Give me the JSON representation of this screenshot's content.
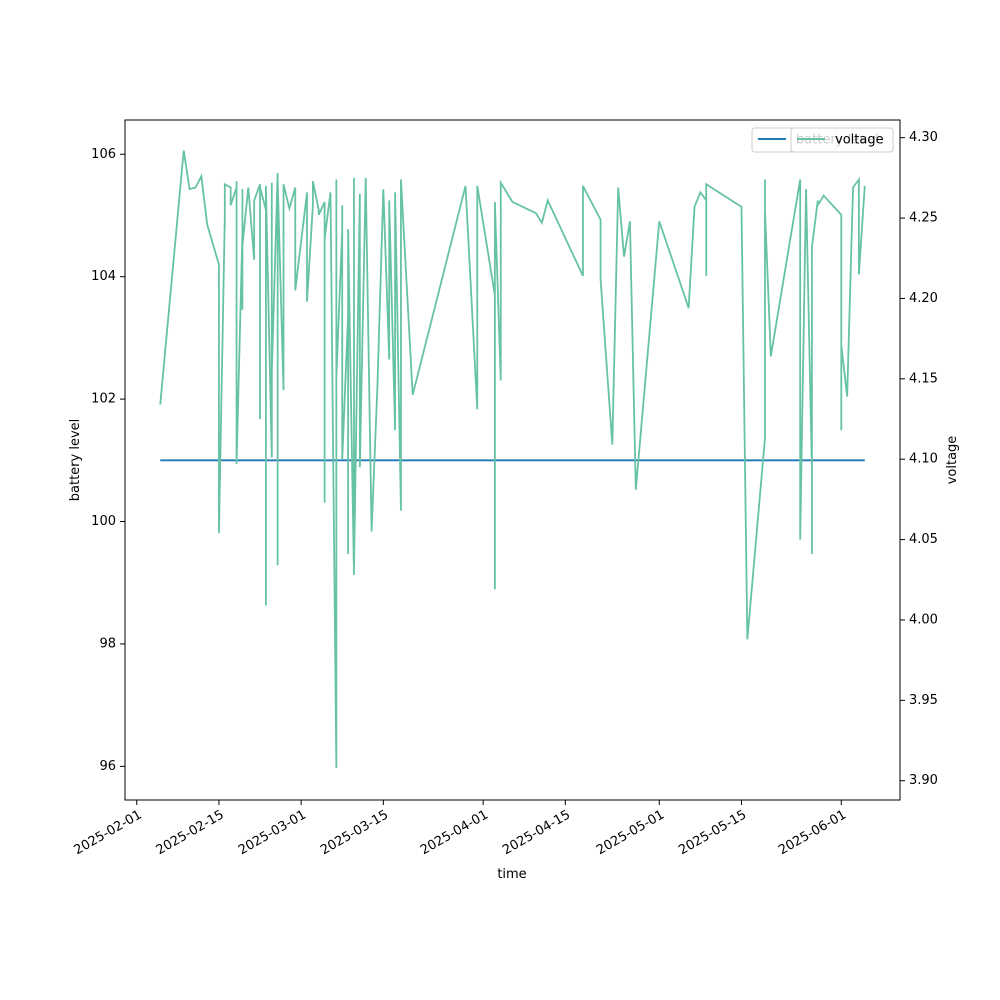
{
  "chart_data": {
    "type": "line",
    "xlabel": "time",
    "ylabel": "battery level",
    "y2label": "voltage",
    "xlim": [
      "2025-01-30",
      "2025-06-11"
    ],
    "xticks": [
      "2025-02-01",
      "2025-02-15",
      "2025-03-01",
      "2025-03-15",
      "2025-04-01",
      "2025-04-15",
      "2025-05-01",
      "2025-05-15",
      "2025-06-01"
    ],
    "ylim": [
      95.45,
      106.56
    ],
    "yticks": [
      96,
      98,
      100,
      102,
      104,
      106
    ],
    "y2lim": [
      3.888,
      4.311
    ],
    "y2ticks": [
      {
        "value": 3.9,
        "label": "3.90"
      },
      3.95,
      {
        "value": 4,
        "label": "4.00"
      },
      4.05,
      {
        "value": 4.1,
        "label": "4.10"
      },
      4.15,
      {
        "value": 4.2,
        "label": "4.20"
      },
      4.25,
      {
        "value": 4.3,
        "label": "4.30"
      }
    ],
    "legend": "upper right",
    "series": [
      {
        "name": "battery level",
        "color": "#1f77b4",
        "axis": "y",
        "x": [
          "2025-02-05",
          "2025-06-05"
        ],
        "values": [
          101,
          101
        ]
      },
      {
        "name": "voltage",
        "color": "#66c2a5",
        "axis": "y2",
        "x": [
          "2025-02-05",
          "2025-02-09",
          "2025-02-10",
          "2025-02-11",
          "2025-02-12",
          "2025-02-13",
          "2025-02-15",
          "2025-02-15",
          "2025-02-16",
          "2025-02-16",
          "2025-02-16",
          "2025-02-17",
          "2025-02-17",
          "2025-02-18",
          "2025-02-18",
          "2025-02-18",
          "2025-02-19",
          "2025-02-19",
          "2025-02-19",
          "2025-02-19",
          "2025-02-20",
          "2025-02-21",
          "2025-02-21",
          "2025-02-22",
          "2025-02-22",
          "2025-02-22",
          "2025-02-23",
          "2025-02-23",
          "2025-02-23",
          "2025-02-23",
          "2025-02-24",
          "2025-02-24",
          "2025-02-24",
          "2025-02-25",
          "2025-02-25",
          "2025-02-25",
          "2025-02-26",
          "2025-02-26",
          "2025-02-27",
          "2025-02-28",
          "2025-02-28",
          "2025-03-02",
          "2025-03-02",
          "2025-03-03",
          "2025-03-03",
          "2025-03-04",
          "2025-03-04",
          "2025-03-05",
          "2025-03-05",
          "2025-03-05",
          "2025-03-06",
          "2025-03-07",
          "2025-03-07",
          "2025-03-07",
          "2025-03-08",
          "2025-03-08",
          "2025-03-08",
          "2025-03-08",
          "2025-03-09",
          "2025-03-09",
          "2025-03-09",
          "2025-03-10",
          "2025-03-10",
          "2025-03-10",
          "2025-03-11",
          "2025-03-11",
          "2025-03-12",
          "2025-03-13",
          "2025-03-14",
          "2025-03-15",
          "2025-03-16",
          "2025-03-16",
          "2025-03-17",
          "2025-03-17",
          "2025-03-17",
          "2025-03-18",
          "2025-03-18",
          "2025-03-20",
          "2025-03-29",
          "2025-03-31",
          "2025-03-31",
          "2025-04-03",
          "2025-04-03",
          "2025-04-03",
          "2025-04-04",
          "2025-04-04",
          "2025-04-06",
          "2025-04-10",
          "2025-04-11",
          "2025-04-12",
          "2025-04-18",
          "2025-04-18",
          "2025-04-21",
          "2025-04-21",
          "2025-04-23",
          "2025-04-24",
          "2025-04-25",
          "2025-04-26",
          "2025-04-27",
          "2025-05-01",
          "2025-05-06",
          "2025-05-07",
          "2025-05-08",
          "2025-05-09",
          "2025-05-09",
          "2025-05-09",
          "2025-05-15",
          "2025-05-16",
          "2025-05-19",
          "2025-05-19",
          "2025-05-19",
          "2025-05-20",
          "2025-05-25",
          "2025-05-25",
          "2025-05-25",
          "2025-05-26",
          "2025-05-27",
          "2025-05-27",
          "2025-05-27",
          "2025-05-28",
          "2025-05-28",
          "2025-05-29",
          "2025-06-01",
          "2025-06-01",
          "2025-06-01",
          "2025-06-01",
          "2025-06-02",
          "2025-06-03",
          "2025-06-04",
          "2025-06-04",
          "2025-06-05"
        ],
        "values": [
          4.134,
          4.292,
          4.268,
          4.269,
          4.276,
          4.246,
          4.221,
          4.054,
          4.251,
          4.244,
          4.271,
          4.269,
          4.258,
          4.269,
          4.273,
          4.097,
          4.241,
          4.193,
          4.268,
          4.233,
          4.269,
          4.224,
          4.261,
          4.271,
          4.125,
          4.269,
          4.255,
          4.009,
          4.087,
          4.27,
          4.101,
          4.272,
          4.154,
          4.278,
          4.034,
          4.274,
          4.143,
          4.271,
          4.256,
          4.269,
          4.205,
          4.266,
          4.198,
          4.258,
          4.273,
          4.255,
          4.252,
          4.26,
          4.073,
          4.237,
          4.266,
          3.908,
          4.274,
          4.151,
          4.243,
          4.112,
          4.258,
          4.1,
          4.19,
          4.041,
          4.243,
          4.028,
          4.275,
          4.031,
          4.265,
          4.095,
          4.275,
          4.055,
          4.146,
          4.268,
          4.162,
          4.261,
          4.118,
          4.266,
          4.266,
          4.068,
          4.274,
          4.14,
          4.27,
          4.131,
          4.27,
          4.202,
          4.019,
          4.26,
          4.149,
          4.272,
          4.26,
          4.253,
          4.247,
          4.261,
          4.214,
          4.27,
          4.249,
          4.212,
          4.109,
          4.269,
          4.226,
          4.248,
          4.081,
          4.248,
          4.194,
          4.257,
          4.266,
          4.261,
          4.214,
          4.271,
          4.257,
          3.988,
          4.113,
          4.274,
          4.255,
          4.164,
          4.274,
          4.059,
          4.05,
          4.268,
          4.093,
          4.041,
          4.232,
          4.261,
          4.258,
          4.264,
          4.252,
          4.118,
          4.241,
          4.171,
          4.139,
          4.269,
          4.274,
          4.215,
          4.27
        ]
      }
    ]
  }
}
